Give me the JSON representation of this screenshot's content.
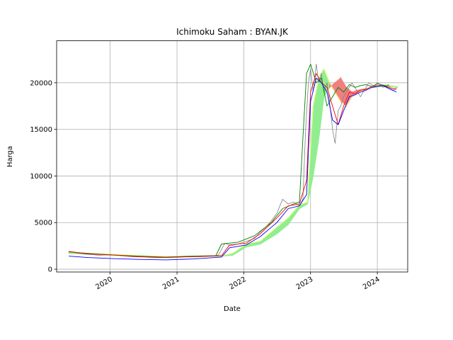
{
  "chart_data": {
    "type": "line",
    "title": "Ichimoku Saham : BYAN.JK",
    "xlabel": "Date",
    "ylabel": "Harga",
    "xlim": [
      "2019-03-15",
      "2024-06-15"
    ],
    "ylim": [
      -300,
      24500
    ],
    "grid": true,
    "x_ticks": [
      "2020-01-01",
      "2021-01-01",
      "2022-01-01",
      "2023-01-01",
      "2024-01-01"
    ],
    "x_tick_labels": [
      "2020",
      "2021",
      "2022",
      "2023",
      "2024"
    ],
    "y_ticks": [
      0,
      5000,
      10000,
      15000,
      20000
    ],
    "y_tick_labels": [
      "0",
      "5000",
      "10000",
      "15000",
      "20000"
    ],
    "colors": {
      "close": "#808080",
      "tenkan": "#ff0000",
      "kijun": "#0000ff",
      "chikou": "#008000",
      "cloud_bull": "#90ee90",
      "cloud_bear": "#f08080",
      "senkou_line": "#ffff66"
    },
    "series": [
      {
        "key": "close",
        "x": [
          "2019-05-20",
          "2019-07-01",
          "2019-09-01",
          "2019-11-01",
          "2020-01-01",
          "2020-03-01",
          "2020-05-01",
          "2020-07-01",
          "2020-09-01",
          "2020-11-01",
          "2021-01-01",
          "2021-03-01",
          "2021-05-01",
          "2021-07-01",
          "2021-08-15",
          "2021-09-20",
          "2021-10-20",
          "2021-12-01",
          "2022-01-15",
          "2022-03-01",
          "2022-04-01",
          "2022-05-01",
          "2022-06-01",
          "2022-07-01",
          "2022-08-01",
          "2022-09-01",
          "2022-10-01",
          "2022-11-01",
          "2022-11-20",
          "2022-12-05",
          "2022-12-20",
          "2023-01-01",
          "2023-01-15",
          "2023-02-01",
          "2023-02-15",
          "2023-03-01",
          "2023-03-15",
          "2023-04-01",
          "2023-04-15",
          "2023-05-01",
          "2023-05-15",
          "2023-06-01",
          "2023-06-15",
          "2023-07-01",
          "2023-07-15",
          "2023-08-01",
          "2023-08-15",
          "2023-09-01",
          "2023-09-15",
          "2023-10-01",
          "2023-10-15",
          "2023-11-01",
          "2023-11-15",
          "2023-12-01",
          "2023-12-15",
          "2024-01-01",
          "2024-01-15",
          "2024-02-01",
          "2024-02-15",
          "2024-03-01",
          "2024-03-15",
          "2024-04-01",
          "2024-04-15"
        ],
        "y": [
          1900,
          1750,
          1600,
          1500,
          1550,
          1450,
          1350,
          1300,
          1250,
          1250,
          1300,
          1350,
          1350,
          1400,
          1500,
          2800,
          2500,
          2700,
          3000,
          3300,
          4000,
          4500,
          5200,
          6000,
          7500,
          7000,
          7200,
          6800,
          7500,
          15000,
          20000,
          21500,
          19000,
          22000,
          20000,
          21000,
          19000,
          20000,
          18000,
          15000,
          13500,
          17000,
          17500,
          18500,
          19000,
          19500,
          20000,
          19500,
          19000,
          18500,
          19000,
          19500,
          20000,
          19800,
          19500,
          20000,
          19800,
          19500,
          19600,
          19800,
          19300,
          19200,
          19500
        ]
      },
      {
        "key": "tenkan",
        "x": [
          "2019-05-20",
          "2019-09-01",
          "2020-01-01",
          "2020-06-01",
          "2020-11-01",
          "2021-04-01",
          "2021-09-01",
          "2021-10-15",
          "2022-01-15",
          "2022-04-01",
          "2022-07-01",
          "2022-09-01",
          "2022-11-01",
          "2022-12-10",
          "2023-01-01",
          "2023-02-01",
          "2023-03-01",
          "2023-04-01",
          "2023-05-01",
          "2023-06-01",
          "2023-07-01",
          "2023-08-01",
          "2023-09-01",
          "2023-10-01",
          "2023-11-01",
          "2023-12-01",
          "2024-01-01",
          "2024-02-01",
          "2024-03-01",
          "2024-04-15"
        ],
        "y": [
          1900,
          1650,
          1550,
          1350,
          1250,
          1350,
          1450,
          2600,
          2800,
          3800,
          5500,
          6800,
          7000,
          9500,
          19000,
          21000,
          20000,
          19500,
          17500,
          15500,
          17500,
          19000,
          18800,
          19200,
          19300,
          19600,
          19700,
          19700,
          19500,
          19300
        ]
      },
      {
        "key": "kijun",
        "x": [
          "2019-05-20",
          "2019-09-01",
          "2020-01-01",
          "2020-06-01",
          "2020-11-01",
          "2021-04-01",
          "2021-09-01",
          "2021-10-15",
          "2022-01-15",
          "2022-04-01",
          "2022-07-01",
          "2022-09-01",
          "2022-11-01",
          "2022-12-10",
          "2023-01-01",
          "2023-02-01",
          "2023-03-01",
          "2023-04-01",
          "2023-05-01",
          "2023-06-01",
          "2023-07-01",
          "2023-08-01",
          "2023-09-01",
          "2023-10-01",
          "2023-11-01",
          "2023-12-01",
          "2024-01-01",
          "2024-02-01",
          "2024-03-01",
          "2024-04-15"
        ],
        "y": [
          1400,
          1250,
          1150,
          1050,
          1000,
          1100,
          1300,
          2300,
          2600,
          3500,
          5000,
          6500,
          6800,
          8000,
          18000,
          20500,
          20000,
          19000,
          16000,
          15500,
          17000,
          18500,
          18700,
          19000,
          19200,
          19500,
          19600,
          19700,
          19400,
          19000
        ]
      },
      {
        "key": "chikou",
        "x": [
          "2019-05-20",
          "2019-09-01",
          "2020-01-01",
          "2020-06-01",
          "2020-11-01",
          "2021-04-01",
          "2021-08-01",
          "2021-09-01",
          "2021-12-01",
          "2022-03-01",
          "2022-06-01",
          "2022-08-01",
          "2022-10-01",
          "2022-11-01",
          "2022-11-20",
          "2022-12-10",
          "2023-01-01",
          "2023-02-01",
          "2023-03-01",
          "2023-04-01",
          "2023-05-01",
          "2023-06-01",
          "2023-07-01",
          "2023-08-01",
          "2023-09-01",
          "2023-10-01",
          "2023-11-01",
          "2023-12-01",
          "2024-01-01",
          "2024-03-01"
        ],
        "y": [
          1850,
          1700,
          1550,
          1400,
          1300,
          1400,
          1450,
          2700,
          2900,
          3600,
          5000,
          6500,
          7000,
          7200,
          14000,
          21000,
          22000,
          20000,
          20500,
          17500,
          18500,
          19500,
          19000,
          19800,
          19500,
          19700,
          19800,
          19600,
          19900,
          19600
        ]
      },
      {
        "key": "senkou_a",
        "x": [
          "2019-05-20",
          "2019-09-01",
          "2020-01-01",
          "2020-06-01",
          "2020-11-01",
          "2021-04-01",
          "2021-09-01",
          "2021-11-01",
          "2022-01-15",
          "2022-04-01",
          "2022-07-01",
          "2022-09-01",
          "2022-11-01",
          "2022-12-15",
          "2023-01-15",
          "2023-02-15",
          "2023-03-15",
          "2023-04-15",
          "2023-05-15",
          "2023-06-15",
          "2023-07-15",
          "2023-08-15",
          "2023-09-15",
          "2023-10-15",
          "2023-11-15",
          "2023-12-15",
          "2024-01-15",
          "2024-02-15",
          "2024-03-15",
          "2024-04-20"
        ],
        "y": [
          1800,
          1700,
          1600,
          1450,
          1350,
          1400,
          1450,
          1700,
          2700,
          3000,
          4500,
          5500,
          6900,
          7200,
          17500,
          20500,
          21500,
          20000,
          19000,
          18000,
          17500,
          18500,
          19000,
          19200,
          19400,
          19600,
          19700,
          19800,
          19700,
          19600
        ]
      },
      {
        "key": "senkou_b",
        "x": [
          "2019-05-20",
          "2019-09-01",
          "2020-01-01",
          "2020-06-01",
          "2020-11-01",
          "2021-04-01",
          "2021-09-01",
          "2021-11-01",
          "2022-01-15",
          "2022-04-01",
          "2022-07-01",
          "2022-09-01",
          "2022-11-01",
          "2022-12-15",
          "2023-01-15",
          "2023-02-15",
          "2023-03-15",
          "2023-04-15",
          "2023-05-15",
          "2023-06-15",
          "2023-07-15",
          "2023-08-15",
          "2023-09-15",
          "2023-10-15",
          "2023-11-15",
          "2023-12-15",
          "2024-01-15",
          "2024-02-15",
          "2024-03-15",
          "2024-04-20"
        ],
        "y": [
          1700,
          1600,
          1500,
          1400,
          1350,
          1350,
          1400,
          1500,
          2400,
          2700,
          3800,
          4800,
          6500,
          7000,
          10000,
          14000,
          18500,
          19500,
          20000,
          20500,
          19500,
          19000,
          19200,
          19300,
          19400,
          19500,
          19600,
          19600,
          19600,
          19500
        ]
      }
    ]
  }
}
